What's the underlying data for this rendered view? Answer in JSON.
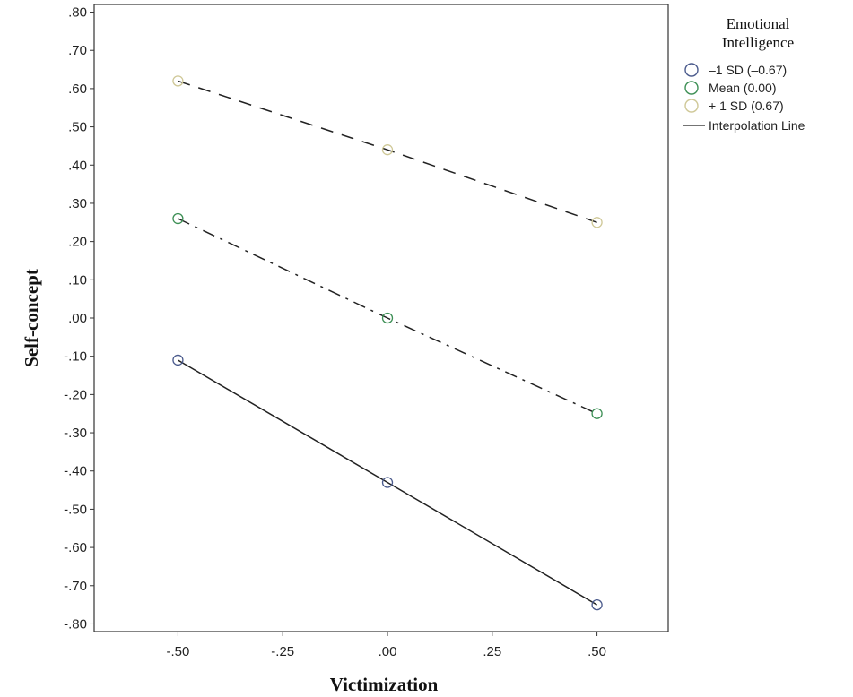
{
  "chart_data": {
    "type": "line",
    "xlabel": "Victimization",
    "ylabel": "Self-concept",
    "x": [
      -0.5,
      0.0,
      0.5
    ],
    "xlim": [
      -0.7,
      0.67
    ],
    "ylim": [
      -0.82,
      0.82
    ],
    "x_ticks": [
      -0.5,
      -0.25,
      0.0,
      0.25,
      0.5
    ],
    "x_tick_labels": [
      "-.50",
      "-.25",
      ".00",
      ".25",
      ".50"
    ],
    "y_ticks": [
      0.8,
      0.7,
      0.6,
      0.5,
      0.4,
      0.3,
      0.2,
      0.1,
      0.0,
      -0.1,
      -0.2,
      -0.3,
      -0.4,
      -0.5,
      -0.6,
      -0.7,
      -0.8
    ],
    "y_tick_labels": [
      ".80",
      ".70",
      ".60",
      ".50",
      ".40",
      ".30",
      ".20",
      ".10",
      ".00",
      "-.10",
      "-.20",
      "-.30",
      "-.40",
      "-.50",
      "-.60",
      "-.70",
      "-.80"
    ],
    "grid": false,
    "legend_placement": "right",
    "legend": {
      "title_line1": "Emotional",
      "title_line2": "Intelligence",
      "interpolation_label": "Interpolation Line"
    },
    "series": [
      {
        "name": "–1 SD (–0.67)",
        "values": [
          -0.11,
          -0.43,
          -0.75
        ],
        "marker_color": "#4a5a8c",
        "line_style": "solid"
      },
      {
        "name": "Mean (0.00)",
        "values": [
          0.26,
          0.0,
          -0.25
        ],
        "marker_color": "#3d8f55",
        "line_style": "dashdot"
      },
      {
        "name": "+ 1 SD (0.67)",
        "values": [
          0.62,
          0.44,
          0.25
        ],
        "marker_color": "#cfc897",
        "line_style": "dashed"
      }
    ]
  }
}
